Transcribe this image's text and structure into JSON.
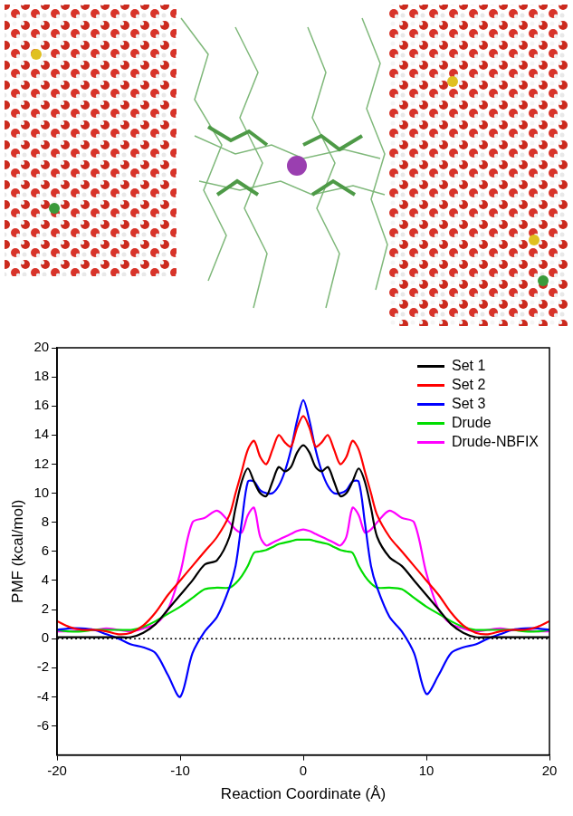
{
  "chart_data": {
    "type": "line",
    "x_label": "Reaction Coordinate (Å)",
    "y_label": "PMF (kcal/mol)",
    "xlim": [
      -20,
      20
    ],
    "xticks": [
      -20,
      -10,
      0,
      10,
      20
    ],
    "ylim": [
      -8,
      20
    ],
    "yticks": [
      -6,
      -4,
      -2,
      0,
      2,
      4,
      6,
      8,
      10,
      12,
      14,
      16,
      18,
      20
    ],
    "grid": false,
    "legend": "upper right",
    "reference_lines": [
      {
        "value": 0,
        "line_style": "dotted"
      }
    ],
    "x": [
      -20,
      -19,
      -18,
      -17,
      -16,
      -15,
      -14,
      -13,
      -12,
      -11,
      -10,
      -9,
      -8,
      -7,
      -6,
      -5.5,
      -5,
      -4.5,
      -4,
      -3.5,
      -3,
      -2.5,
      -2,
      -1.5,
      -1,
      -0.5,
      0,
      0.5,
      1,
      1.5,
      2,
      2.5,
      3,
      3.5,
      4,
      4.5,
      5,
      5.5,
      6,
      7,
      8,
      9,
      10,
      11,
      12,
      13,
      14,
      15,
      16,
      17,
      18,
      19,
      20
    ],
    "series": [
      {
        "name": "Set 1",
        "color": "#000000",
        "values": [
          0.1,
          0.1,
          0.1,
          0.1,
          0.1,
          0.1,
          0.1,
          0.4,
          1.0,
          2.0,
          3.0,
          4.0,
          5.1,
          5.4,
          7.0,
          9.0,
          10.8,
          11.7,
          10.8,
          10.0,
          9.8,
          10.8,
          11.8,
          11.5,
          11.8,
          12.8,
          13.3,
          12.8,
          11.8,
          11.5,
          11.8,
          10.8,
          9.8,
          10.0,
          10.8,
          11.7,
          10.8,
          9.0,
          7.0,
          5.6,
          5.0,
          4.0,
          3.0,
          2.0,
          1.0,
          0.4,
          0.1,
          0.1,
          0.1,
          0.1,
          0.1,
          0.1,
          0.1
        ]
      },
      {
        "name": "Set 2",
        "color": "#ff0000",
        "values": [
          1.2,
          0.8,
          0.6,
          0.6,
          0.5,
          0.3,
          0.4,
          0.9,
          1.8,
          3.0,
          4.0,
          5.0,
          6.0,
          7.0,
          8.5,
          10.0,
          11.5,
          13.0,
          13.6,
          12.5,
          12.0,
          13.0,
          14.0,
          13.5,
          13.2,
          14.5,
          15.3,
          14.5,
          13.2,
          13.5,
          14.0,
          13.0,
          12.0,
          12.5,
          13.6,
          13.0,
          11.5,
          10.0,
          8.5,
          7.0,
          6.0,
          5.0,
          4.0,
          3.0,
          1.8,
          0.9,
          0.4,
          0.3,
          0.5,
          0.6,
          0.6,
          0.8,
          1.2
        ]
      },
      {
        "name": "Set 3",
        "color": "#0000ff",
        "values": [
          0.6,
          0.7,
          0.7,
          0.6,
          0.3,
          0.0,
          -0.4,
          -0.6,
          -1.0,
          -2.5,
          -4.0,
          -1.0,
          0.5,
          1.5,
          3.5,
          5.0,
          8.0,
          10.8,
          10.8,
          10.2,
          10.0,
          10.0,
          10.5,
          11.5,
          13.0,
          15.0,
          16.4,
          15.0,
          13.0,
          11.5,
          10.5,
          10.0,
          10.0,
          10.2,
          10.8,
          10.8,
          8.0,
          5.0,
          3.5,
          1.5,
          0.5,
          -1.0,
          -3.8,
          -2.5,
          -1.0,
          -0.6,
          -0.4,
          0.0,
          0.3,
          0.6,
          0.7,
          0.7,
          0.6
        ]
      },
      {
        "name": "Drude",
        "color": "#00dd00",
        "values": [
          0.6,
          0.5,
          0.5,
          0.6,
          0.6,
          0.6,
          0.6,
          0.8,
          1.2,
          1.7,
          2.2,
          2.8,
          3.4,
          3.5,
          3.5,
          3.8,
          4.3,
          5.0,
          5.9,
          6.0,
          6.1,
          6.3,
          6.5,
          6.6,
          6.7,
          6.8,
          6.8,
          6.8,
          6.7,
          6.6,
          6.5,
          6.3,
          6.1,
          6.0,
          5.9,
          5.0,
          4.3,
          3.8,
          3.5,
          3.5,
          3.4,
          2.8,
          2.2,
          1.7,
          1.2,
          0.8,
          0.6,
          0.6,
          0.6,
          0.6,
          0.5,
          0.5,
          0.6
        ]
      },
      {
        "name": "Drude-NBFIX",
        "color": "#ff00ff",
        "values": [
          0.5,
          0.5,
          0.6,
          0.6,
          0.7,
          0.6,
          0.5,
          0.7,
          1.0,
          2.0,
          4.5,
          8.0,
          8.3,
          8.8,
          8.0,
          7.5,
          7.3,
          8.5,
          9.0,
          7.0,
          6.4,
          6.6,
          6.8,
          7.0,
          7.2,
          7.4,
          7.5,
          7.4,
          7.2,
          7.0,
          6.8,
          6.6,
          6.4,
          7.0,
          9.0,
          8.5,
          7.3,
          7.5,
          8.0,
          8.8,
          8.3,
          8.0,
          4.5,
          2.0,
          1.0,
          0.7,
          0.5,
          0.6,
          0.7,
          0.6,
          0.6,
          0.5,
          0.5
        ]
      }
    ]
  }
}
